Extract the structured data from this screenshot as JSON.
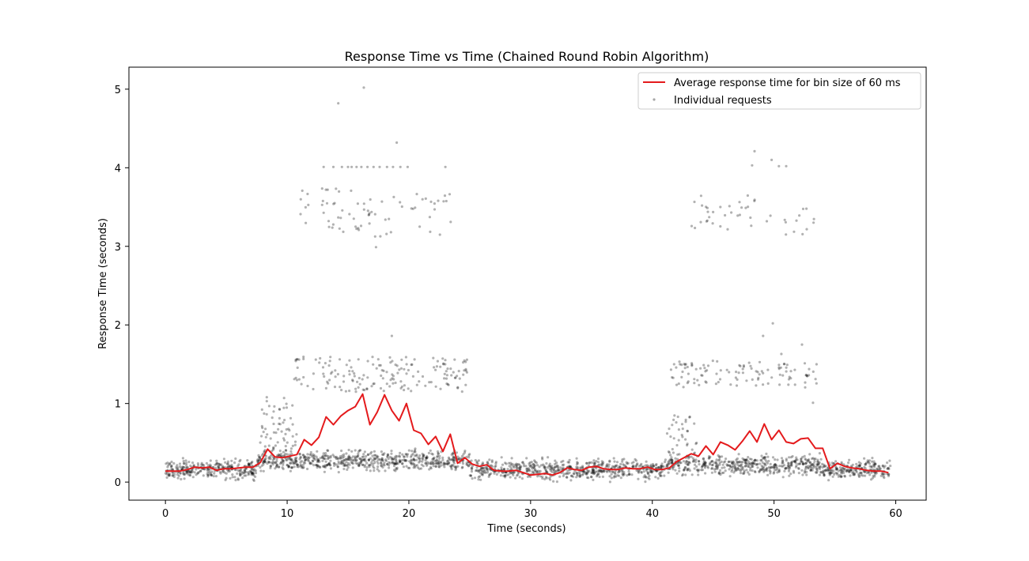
{
  "chart_data": {
    "type": "scatter",
    "title": "Response Time vs Time (Chained Round Robin Algorithm)",
    "xlabel": "Time (seconds)",
    "ylabel": "Response Time (seconds)",
    "xlim": [
      -3,
      62.5
    ],
    "ylim": [
      -0.23,
      5.28
    ],
    "x_ticks": [
      0,
      10,
      20,
      30,
      40,
      50,
      60
    ],
    "y_ticks": [
      0,
      1,
      2,
      3,
      4,
      5
    ],
    "grid": false,
    "legend_position": "top-right",
    "series": [
      {
        "name": "Average response time for bin size of 60 ms",
        "kind": "line",
        "color": "#e41a1c",
        "x": [
          0.0,
          0.6,
          1.2,
          1.8,
          2.4,
          3.0,
          3.6,
          4.2,
          4.8,
          5.4,
          6.0,
          6.6,
          7.2,
          7.8,
          8.4,
          9.0,
          9.6,
          10.2,
          10.8,
          11.4,
          12.0,
          12.6,
          13.2,
          13.8,
          14.4,
          15.0,
          15.6,
          16.2,
          16.8,
          17.4,
          18.0,
          18.6,
          19.2,
          19.8,
          20.4,
          21.0,
          21.6,
          22.2,
          22.8,
          23.4,
          24.0,
          24.6,
          25.2,
          25.8,
          26.4,
          27.0,
          27.6,
          28.2,
          28.8,
          29.4,
          30.0,
          30.6,
          31.2,
          31.8,
          32.4,
          33.0,
          33.6,
          34.2,
          34.8,
          35.4,
          36.0,
          36.6,
          37.2,
          37.8,
          38.4,
          39.0,
          39.6,
          40.2,
          40.8,
          41.4,
          42.0,
          42.6,
          43.2,
          43.8,
          44.4,
          45.0,
          45.6,
          46.2,
          46.8,
          47.4,
          48.0,
          48.6,
          49.2,
          49.8,
          50.4,
          51.0,
          51.6,
          52.2,
          52.8,
          53.4,
          54.0,
          54.6,
          55.2,
          55.8,
          56.4,
          57.0,
          57.6,
          58.2,
          58.8,
          59.4
        ],
        "values": [
          0.14,
          0.14,
          0.14,
          0.16,
          0.19,
          0.18,
          0.19,
          0.15,
          0.17,
          0.17,
          0.18,
          0.19,
          0.19,
          0.25,
          0.42,
          0.32,
          0.31,
          0.33,
          0.35,
          0.54,
          0.47,
          0.57,
          0.83,
          0.73,
          0.84,
          0.91,
          0.96,
          1.12,
          0.73,
          0.89,
          1.11,
          0.91,
          0.78,
          1.0,
          0.66,
          0.62,
          0.48,
          0.58,
          0.39,
          0.61,
          0.24,
          0.31,
          0.23,
          0.2,
          0.22,
          0.15,
          0.14,
          0.14,
          0.15,
          0.12,
          0.09,
          0.1,
          0.11,
          0.09,
          0.12,
          0.18,
          0.16,
          0.15,
          0.19,
          0.2,
          0.17,
          0.16,
          0.16,
          0.18,
          0.17,
          0.17,
          0.19,
          0.16,
          0.16,
          0.18,
          0.26,
          0.31,
          0.36,
          0.33,
          0.46,
          0.35,
          0.51,
          0.47,
          0.41,
          0.52,
          0.65,
          0.51,
          0.74,
          0.54,
          0.66,
          0.51,
          0.49,
          0.55,
          0.56,
          0.43,
          0.43,
          0.17,
          0.24,
          0.2,
          0.18,
          0.17,
          0.15,
          0.14,
          0.14,
          0.12
        ]
      },
      {
        "name": "Individual requests",
        "kind": "scatter",
        "color": "#000000",
        "notable_points": {
          "x": [
            16.3,
            14.2,
            19.0,
            13.0,
            13.8,
            14.5,
            15.0,
            15.3,
            15.7,
            16.1,
            16.6,
            17.1,
            17.6,
            18.2,
            18.7,
            19.3,
            19.9,
            23.0,
            17.3,
            48.4,
            49.8,
            50.4,
            51.0,
            48.2,
            18.6,
            49.9,
            49.1,
            50.6,
            52.3,
            53.2
          ],
          "y": [
            5.02,
            4.82,
            4.32,
            4.01,
            4.01,
            4.01,
            4.01,
            4.01,
            4.01,
            4.01,
            4.01,
            4.01,
            4.01,
            4.01,
            4.01,
            4.01,
            4.01,
            4.01,
            2.99,
            4.21,
            4.1,
            4.02,
            4.02,
            4.03,
            1.86,
            2.02,
            1.86,
            1.63,
            1.75,
            1.01
          ]
        }
      }
    ]
  }
}
